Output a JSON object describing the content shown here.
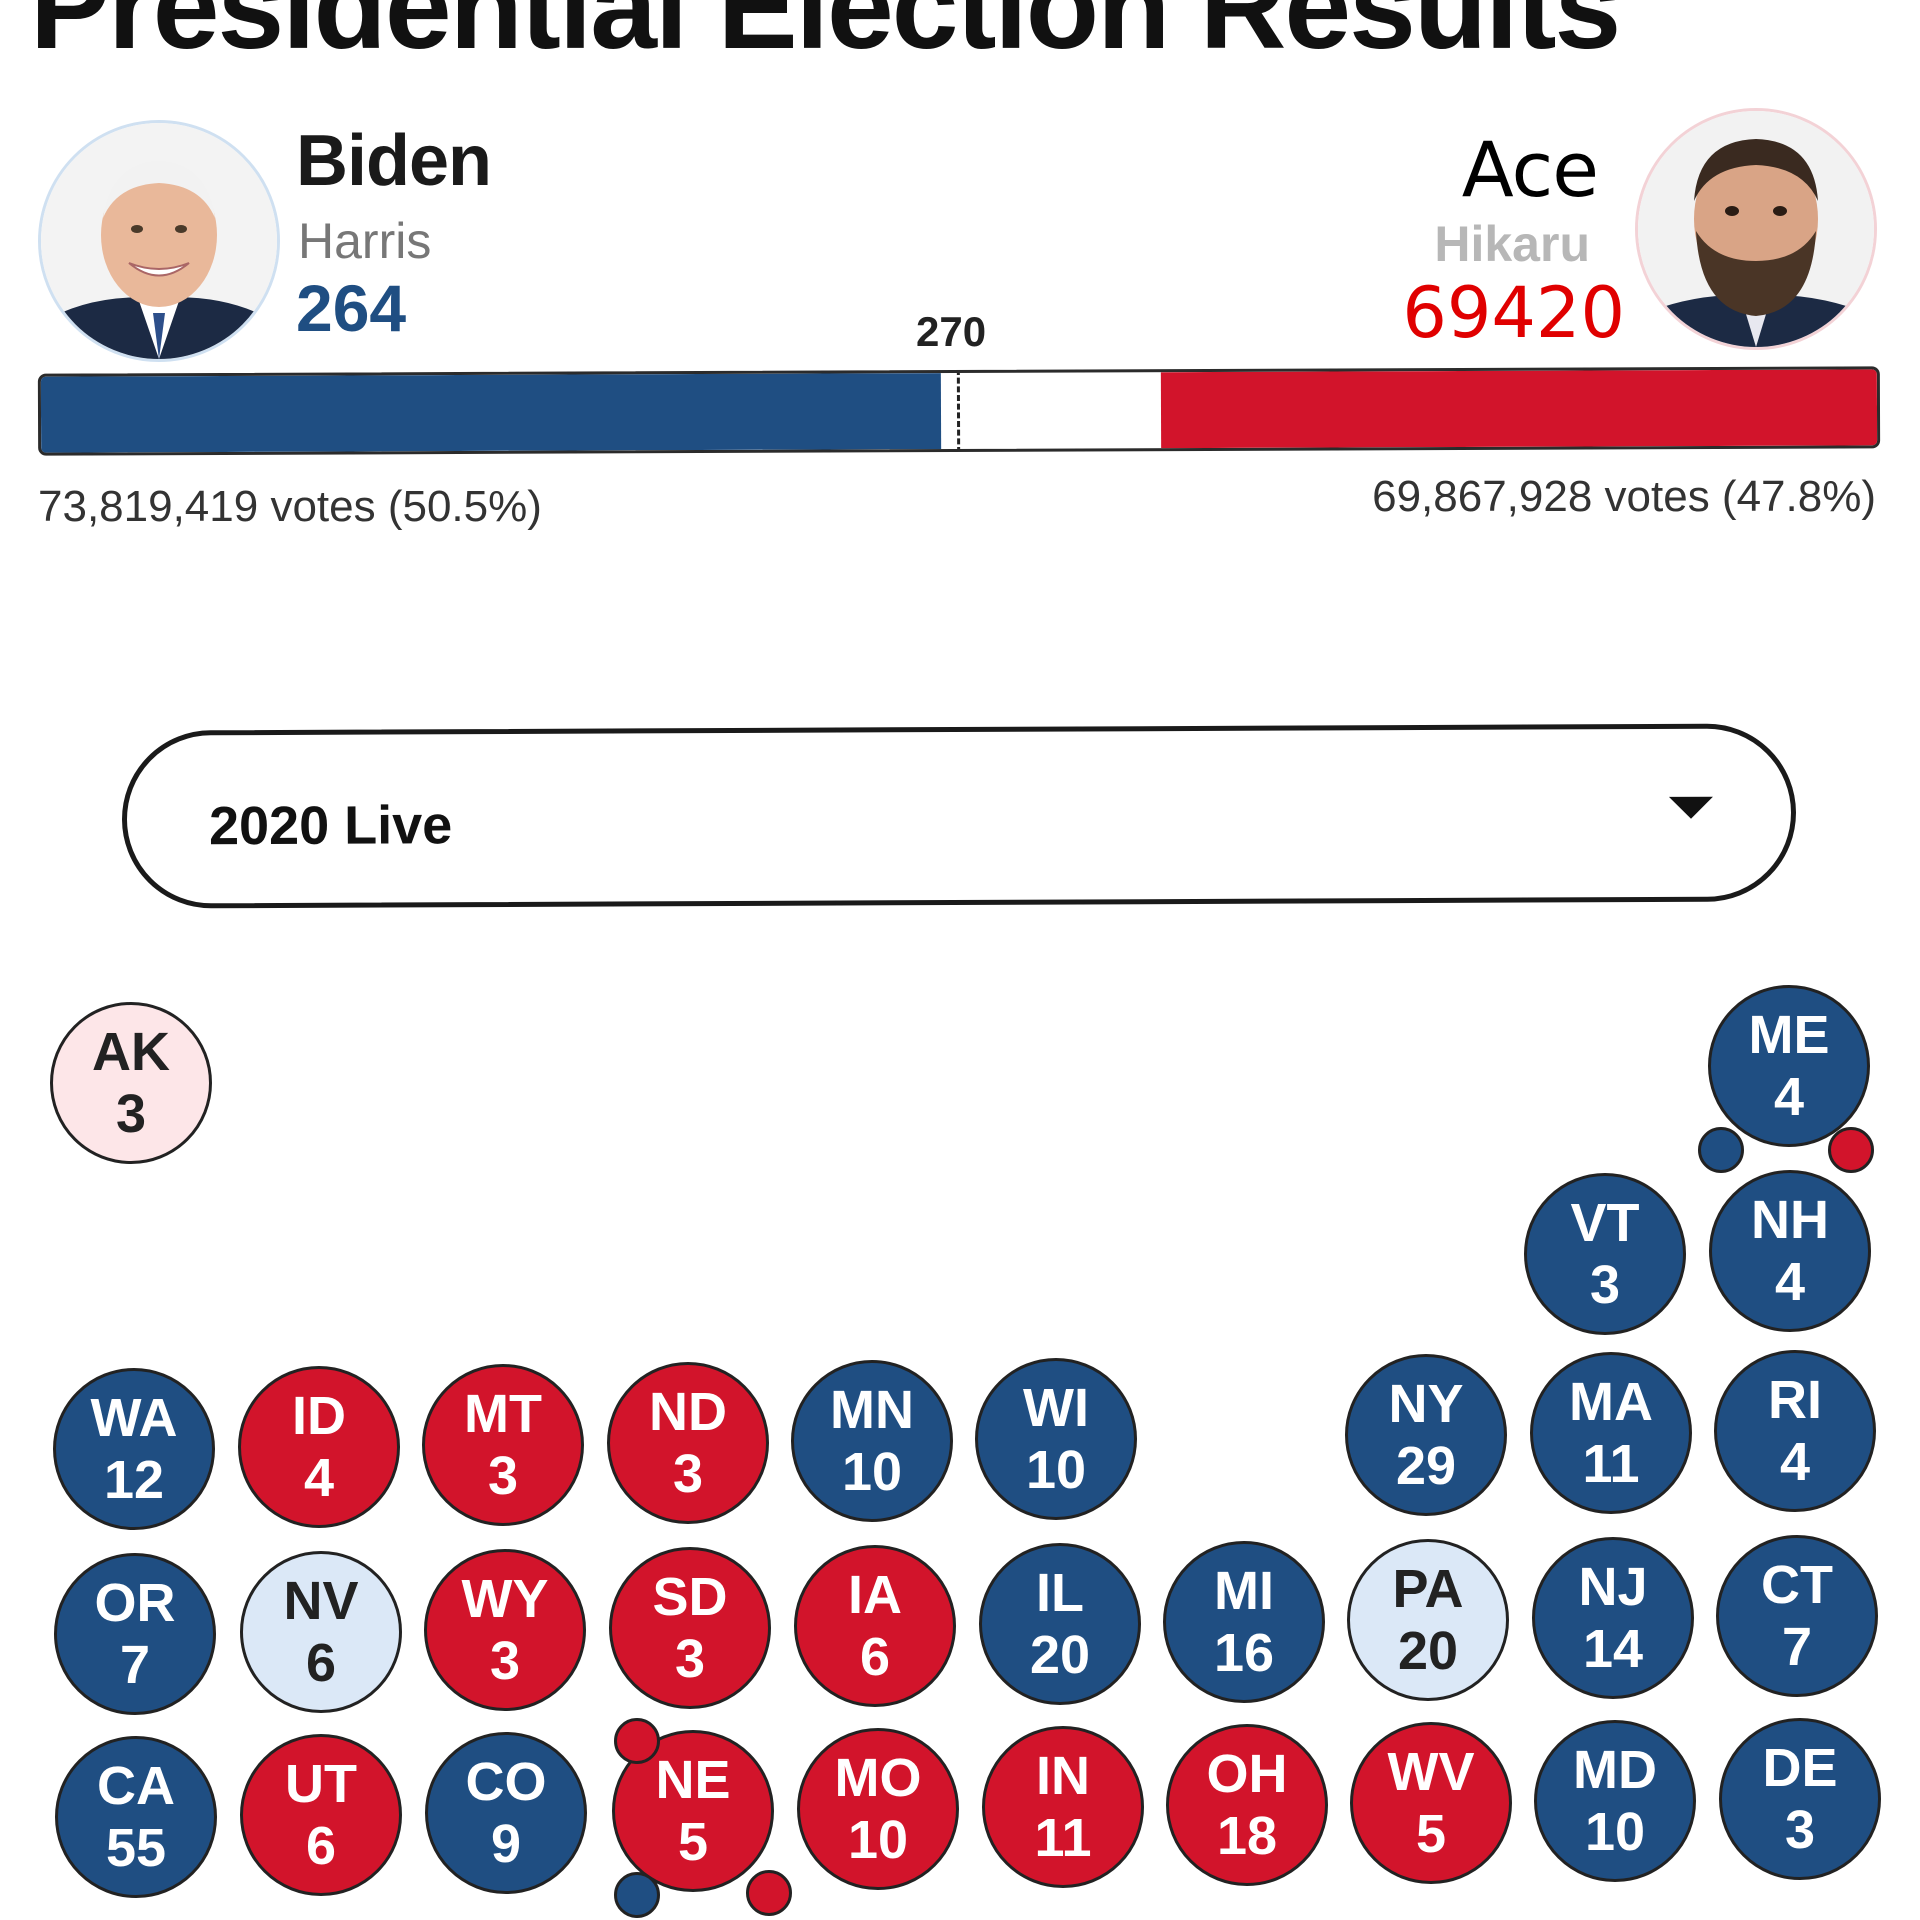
{
  "header": {
    "title": "Presidential Election Results"
  },
  "threshold": {
    "label": "270"
  },
  "candidates": {
    "left": {
      "name": "Biden",
      "vp": "Harris",
      "electoral_votes": "264",
      "votes": "73,819,419 votes (50.5%)",
      "color": "#1f4e82",
      "avatar": "biden-photo"
    },
    "right": {
      "name": "Ace",
      "vp": "Hikaru",
      "electoral_votes": "69420",
      "votes": "69,867,928 votes (47.8%)",
      "color": "#d2142b",
      "avatar": "bearded-man-photo"
    }
  },
  "bar": {
    "left_fraction": 0.49,
    "right_fraction": 0.39,
    "threshold_fraction": 0.5
  },
  "selector": {
    "value": "2020 Live",
    "icon": "chevron-down-icon"
  },
  "states": [
    {
      "abbr": "AK",
      "ev": "3",
      "status": "lean-rep"
    },
    {
      "abbr": "ME",
      "ev": "4",
      "status": "dem",
      "districts": [
        "dem",
        "rep"
      ]
    },
    {
      "abbr": "VT",
      "ev": "3",
      "status": "dem"
    },
    {
      "abbr": "NH",
      "ev": "4",
      "status": "dem"
    },
    {
      "abbr": "WA",
      "ev": "12",
      "status": "dem"
    },
    {
      "abbr": "ID",
      "ev": "4",
      "status": "rep"
    },
    {
      "abbr": "MT",
      "ev": "3",
      "status": "rep"
    },
    {
      "abbr": "ND",
      "ev": "3",
      "status": "rep"
    },
    {
      "abbr": "MN",
      "ev": "10",
      "status": "dem"
    },
    {
      "abbr": "WI",
      "ev": "10",
      "status": "dem"
    },
    {
      "abbr": "NY",
      "ev": "29",
      "status": "dem"
    },
    {
      "abbr": "MA",
      "ev": "11",
      "status": "dem"
    },
    {
      "abbr": "RI",
      "ev": "4",
      "status": "dem"
    },
    {
      "abbr": "OR",
      "ev": "7",
      "status": "dem"
    },
    {
      "abbr": "NV",
      "ev": "6",
      "status": "lean-dem"
    },
    {
      "abbr": "WY",
      "ev": "3",
      "status": "rep"
    },
    {
      "abbr": "SD",
      "ev": "3",
      "status": "rep"
    },
    {
      "abbr": "IA",
      "ev": "6",
      "status": "rep"
    },
    {
      "abbr": "IL",
      "ev": "20",
      "status": "dem"
    },
    {
      "abbr": "MI",
      "ev": "16",
      "status": "dem"
    },
    {
      "abbr": "PA",
      "ev": "20",
      "status": "lean-dem"
    },
    {
      "abbr": "NJ",
      "ev": "14",
      "status": "dem"
    },
    {
      "abbr": "CT",
      "ev": "7",
      "status": "dem"
    },
    {
      "abbr": "CA",
      "ev": "55",
      "status": "dem"
    },
    {
      "abbr": "UT",
      "ev": "6",
      "status": "rep"
    },
    {
      "abbr": "CO",
      "ev": "9",
      "status": "dem"
    },
    {
      "abbr": "NE",
      "ev": "5",
      "status": "rep",
      "districts": [
        "rep",
        "dem",
        "rep"
      ]
    },
    {
      "abbr": "MO",
      "ev": "10",
      "status": "rep"
    },
    {
      "abbr": "IN",
      "ev": "11",
      "status": "rep"
    },
    {
      "abbr": "OH",
      "ev": "18",
      "status": "rep"
    },
    {
      "abbr": "WV",
      "ev": "5",
      "status": "rep"
    },
    {
      "abbr": "MD",
      "ev": "10",
      "status": "dem"
    },
    {
      "abbr": "DE",
      "ev": "3",
      "status": "dem"
    }
  ]
}
